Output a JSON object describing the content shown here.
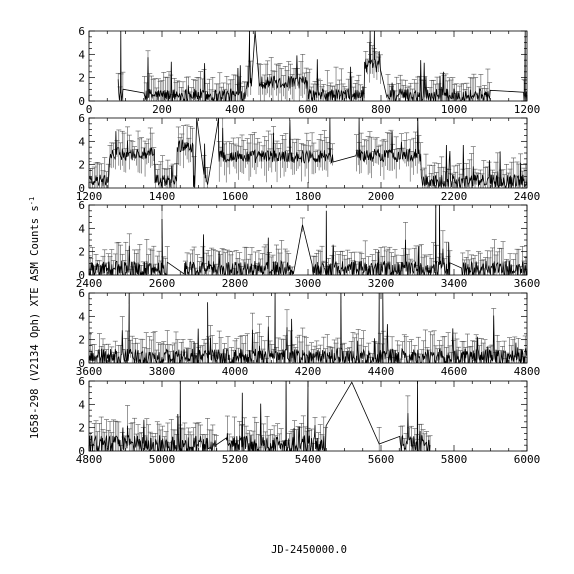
{
  "chart_data": {
    "type": "line",
    "description_source": "multi-panel light curve with error bars",
    "xlabel": "JD-2450000.0",
    "ylabel": "1658-298 (V2134 Oph) XTE ASM Counts s",
    "ylabel_superscript": "-1",
    "grid": false,
    "panels": [
      {
        "xlim": [
          0,
          1200
        ],
        "ylim": [
          0,
          6
        ],
        "xticks": [
          "0",
          "200",
          "400",
          "600",
          "800",
          "1000",
          "1200"
        ],
        "yticks": [
          "0",
          "2",
          "4",
          "6"
        ],
        "level": 0.5,
        "noise": 0.7,
        "data_start": 80,
        "data_end": 1200,
        "gaps": [
          [
            95,
            150
          ],
          [
            445,
            465
          ],
          [
            800,
            815
          ],
          [
            1100,
            1190
          ]
        ],
        "bumps": [
          [
            430,
            600,
            1.1
          ],
          [
            755,
            800,
            2.5
          ]
        ],
        "spikes": [
          [
            87,
            6
          ],
          [
            440,
            6
          ],
          [
            455,
            6
          ],
          [
            770,
            6
          ],
          [
            782,
            6
          ],
          [
            1195,
            6
          ]
        ]
      },
      {
        "xlim": [
          1200,
          2400
        ],
        "ylim": [
          0,
          6
        ],
        "xticks": [
          "1200",
          "1400",
          "1600",
          "1800",
          "2000",
          "2200",
          "2400"
        ],
        "yticks": [
          "0",
          "2",
          "4",
          "6"
        ],
        "level": 0.6,
        "noise": 0.7,
        "data_start": 1200,
        "data_end": 2400,
        "gaps": [
          [
            1490,
            1515
          ],
          [
            1525,
            1555
          ],
          [
            1870,
            1930
          ]
        ],
        "bumps": [
          [
            1255,
            1380,
            2.3
          ],
          [
            1440,
            1485,
            3.0
          ],
          [
            1550,
            1870,
            2.1
          ],
          [
            1930,
            2110,
            2.2
          ]
        ],
        "spikes": [
          [
            1495,
            6
          ],
          [
            1555,
            6
          ],
          [
            1940,
            6
          ],
          [
            1860,
            6
          ]
        ]
      },
      {
        "xlim": [
          2400,
          3600
        ],
        "ylim": [
          0,
          6
        ],
        "xticks": [
          "2400",
          "2600",
          "2800",
          "3000",
          "3200",
          "3400",
          "3600"
        ],
        "yticks": [
          "0",
          "2",
          "4",
          "6"
        ],
        "level": 0.5,
        "noise": 0.9,
        "data_start": 2400,
        "data_end": 3600,
        "gaps": [
          [
            2615,
            2660
          ],
          [
            2960,
            3010
          ],
          [
            3390,
            3420
          ]
        ],
        "bumps": [],
        "spikes": [
          [
            2600,
            4.8
          ],
          [
            2985,
            4.3
          ],
          [
            3050,
            5.5
          ],
          [
            3350,
            6
          ],
          [
            3360,
            6
          ]
        ]
      },
      {
        "xlim": [
          3600,
          4800
        ],
        "ylim": [
          0,
          6
        ],
        "xticks": [
          "3600",
          "3800",
          "4000",
          "4200",
          "4400",
          "4600",
          "4800"
        ],
        "yticks": [
          "0",
          "2",
          "4",
          "6"
        ],
        "level": 0.5,
        "noise": 0.9,
        "data_start": 3600,
        "data_end": 4800,
        "gaps": [],
        "bumps": [],
        "spikes": [
          [
            3710,
            6
          ],
          [
            3925,
            5.2
          ],
          [
            4110,
            6
          ],
          [
            4290,
            6
          ],
          [
            4395,
            6
          ],
          [
            4405,
            6
          ]
        ]
      },
      {
        "xlim": [
          4800,
          6000
        ],
        "ylim": [
          0,
          6
        ],
        "xticks": [
          "4800",
          "5000",
          "5200",
          "5400",
          "5600",
          "5800",
          "6000"
        ],
        "yticks": [
          "0",
          "2",
          "4",
          "6"
        ],
        "level": 0.55,
        "noise": 1.0,
        "data_start": 4800,
        "data_end": 5735,
        "gaps": [
          [
            5150,
            5175
          ],
          [
            5450,
            5650
          ]
        ],
        "bumps": [],
        "spikes": [
          [
            5050,
            6
          ],
          [
            5220,
            5.0
          ],
          [
            5340,
            6
          ],
          [
            5400,
            6
          ],
          [
            5520,
            5.9
          ],
          [
            5595,
            0.6
          ],
          [
            5700,
            6
          ]
        ]
      }
    ]
  }
}
